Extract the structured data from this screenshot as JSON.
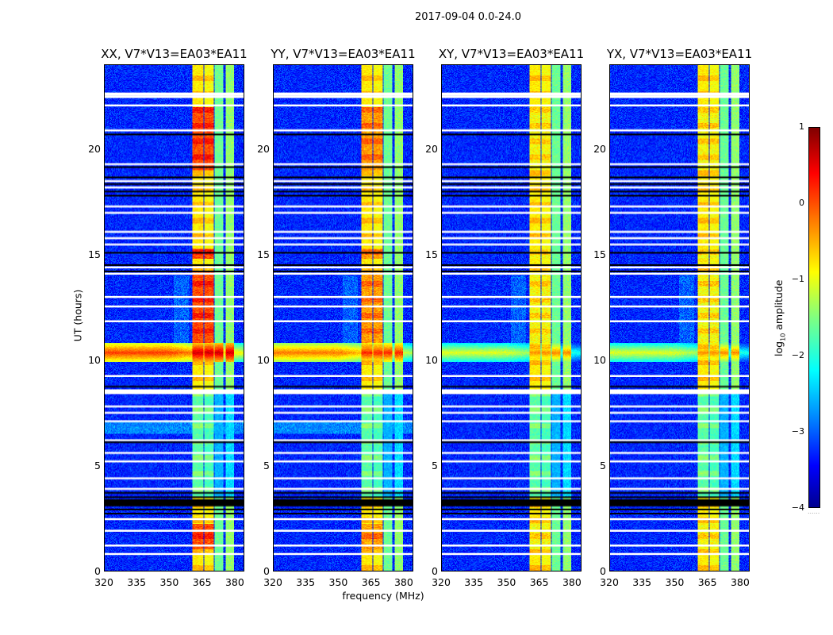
{
  "chart_data": {
    "type": "heatmap",
    "title": "2017-09-04 0.0-24.0",
    "xlabel": "frequency (MHz)",
    "ylabel": "UT (hours)",
    "xlim": [
      320,
      384.4
    ],
    "ylim": [
      0,
      24
    ],
    "xticks": [
      "320",
      "335",
      "350",
      "365",
      "380"
    ],
    "yticks": [
      "0",
      "5",
      "10",
      "15",
      "20"
    ],
    "xtick_values": [
      320,
      335,
      350,
      365,
      380
    ],
    "ytick_values": [
      0,
      5,
      10,
      15,
      20
    ],
    "panels": [
      {
        "title": "XX, V7*V13=EA03*EA11",
        "rfi_band_level": 0.3,
        "bright_band_left_level": 0.1
      },
      {
        "title": "YY, V7*V13=EA03*EA11",
        "rfi_band_level": -0.1,
        "bright_band_left_level": -0.2
      },
      {
        "title": "XY, V7*V13=EA03*EA11",
        "rfi_band_level": -0.6,
        "bright_band_left_level": -1.0
      },
      {
        "title": "YX, V7*V13=EA03*EA11",
        "rfi_band_level": -0.6,
        "bright_band_left_level": -1.0
      }
    ],
    "background_level": -3.2,
    "freq_features_mhz": [
      {
        "from": 360.7,
        "to": 365.7,
        "level": -0.8
      },
      {
        "from": 366.2,
        "to": 370.5,
        "level": -0.9
      },
      {
        "from": 371.0,
        "to": 375.0,
        "level": -1.6
      },
      {
        "from": 376.0,
        "to": 380.0,
        "level": -1.4
      }
    ],
    "time_band_hours": [
      9.9,
      10.8
    ],
    "flagged_white_hours": [
      22.6,
      22.5,
      22.1,
      20.9,
      19.3,
      18.5,
      18.2,
      17.3,
      17.0,
      16.1,
      15.8,
      15.5,
      14.4,
      14.1,
      13.0,
      12.55,
      11.85,
      9.26,
      8.5,
      8.45,
      7.8,
      7.5,
      7.1,
      6.2,
      5.6,
      5.2,
      4.4,
      3.9,
      2.45,
      1.9,
      1.2,
      0.8
    ],
    "flagged_black_hours": [
      20.7,
      19.15,
      18.67,
      18.35,
      18.0,
      17.8,
      15.1,
      14.5,
      14.2,
      8.73,
      6.1,
      3.7,
      3.5,
      3.3,
      3.1,
      2.9,
      2.7
    ],
    "colorbar": {
      "label_main": "log",
      "label_sub": "10",
      "label_rest": " amplitude",
      "range": [
        -4,
        1
      ],
      "ticks": [
        "1",
        "0",
        "−1",
        "−2",
        "−3",
        "−4"
      ],
      "tick_values": [
        1,
        0,
        -1,
        -2,
        -3,
        -4
      ]
    }
  }
}
